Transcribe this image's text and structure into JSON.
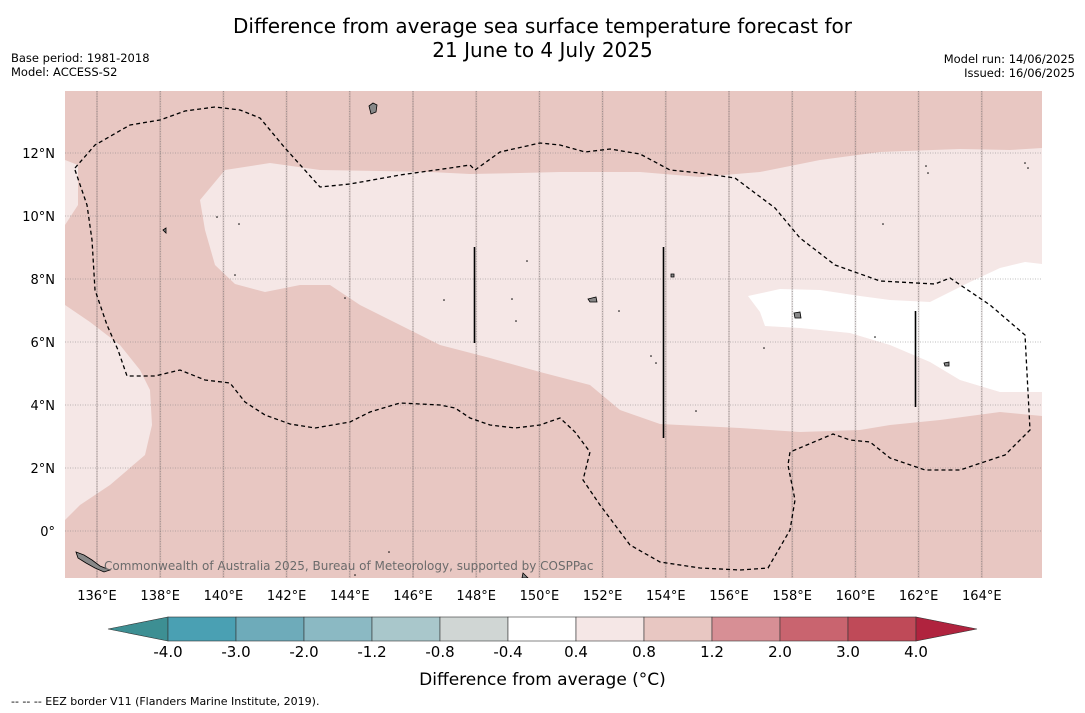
{
  "title_line1": "Difference from average sea surface temperature forecast for",
  "title_line2": "21 June to 4 July 2025",
  "base_period": "Base period: 1981-2018",
  "model": "Model: ACCESS-S2",
  "model_run": "Model run: 14/06/2025",
  "issued": "Issued: 16/06/2025",
  "watermark": "Commonwealth of Australia 2025, Bureau of Meteorology, supported by COSPPac",
  "lon_labels": [
    "136°E",
    "138°E",
    "140°E",
    "142°E",
    "144°E",
    "146°E",
    "148°E",
    "150°E",
    "152°E",
    "154°E",
    "156°E",
    "158°E",
    "160°E",
    "162°E",
    "164°E"
  ],
  "lat_labels": [
    "12°N",
    "10°N",
    "8°N",
    "6°N",
    "4°N",
    "2°N",
    "0°"
  ],
  "colorbar": {
    "label": "Difference from average (°C)",
    "ticks": [
      "-4.0",
      "-3.0",
      "-2.0",
      "-1.2",
      "-0.8",
      "-0.4",
      "0.4",
      "0.8",
      "1.2",
      "2.0",
      "3.0",
      "4.0"
    ],
    "colors": [
      "#4aa0b3",
      "#6eabba",
      "#8bb9c3",
      "#a9c7cb",
      "#d0d6d4",
      "#ffffff",
      "#f5e7e6",
      "#e8c7c2",
      "#d78f95",
      "#c9646f",
      "#bf4a58"
    ],
    "under_color": "#3d8f93",
    "over_color": "#b0233e"
  },
  "footer": "--  --  -- EEZ border V11 (Flanders Marine Institute, 2019)."
}
